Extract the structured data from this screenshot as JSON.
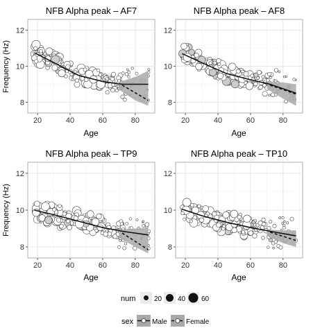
{
  "figure": {
    "ylabel": "Frequency (Hz)",
    "xlabel": "Age"
  },
  "legend": {
    "size_title": "num",
    "size_values": [
      20,
      40,
      60
    ],
    "sex_title": "sex",
    "sex_entries": [
      "Male",
      "Female"
    ]
  },
  "colors": {
    "point_fill": "#ffffff",
    "point_overlap_fill": "#cccccc",
    "point_stroke": "#444444",
    "ribbon": "#a9a9a9",
    "grid": "#e6e6e6",
    "line": "#111111"
  },
  "chart_data": [
    {
      "type": "scatter",
      "title": "NFB Alpha peak – AF7",
      "xlim": [
        14,
        92
      ],
      "ylim": [
        7.4,
        12.6
      ],
      "xticks": [
        20,
        40,
        60,
        80
      ],
      "yticks": [
        8,
        10,
        12
      ],
      "xlabel": "Age",
      "ylabel": "Frequency (Hz)",
      "grid": true,
      "trend": {
        "male": [
          [
            18,
            10.75
          ],
          [
            30,
            10.2
          ],
          [
            45,
            9.5
          ],
          [
            60,
            9.15
          ],
          [
            72,
            9.0
          ],
          [
            88,
            9.0
          ]
        ],
        "female": [
          [
            18,
            10.75
          ],
          [
            30,
            10.2
          ],
          [
            45,
            9.5
          ],
          [
            60,
            9.15
          ],
          [
            72,
            8.95
          ],
          [
            88,
            8.1
          ]
        ],
        "ribbon_upper": [
          [
            70,
            9.12
          ],
          [
            80,
            9.4
          ],
          [
            88,
            9.75
          ]
        ],
        "ribbon_lower": [
          [
            70,
            8.7
          ],
          [
            80,
            8.1
          ],
          [
            88,
            7.8
          ]
        ]
      }
    },
    {
      "type": "scatter",
      "title": "NFB Alpha peak – AF8",
      "xlim": [
        14,
        92
      ],
      "ylim": [
        7.4,
        12.6
      ],
      "xticks": [
        20,
        40,
        60,
        80
      ],
      "yticks": [
        8,
        10,
        12
      ],
      "xlabel": "Age",
      "ylabel": "Frequency (Hz)",
      "grid": true,
      "trend": {
        "male": [
          [
            18,
            10.7
          ],
          [
            30,
            10.2
          ],
          [
            45,
            9.6
          ],
          [
            60,
            9.25
          ],
          [
            72,
            9.0
          ],
          [
            88,
            8.5
          ]
        ],
        "female": [
          [
            18,
            10.7
          ],
          [
            30,
            10.2
          ],
          [
            45,
            9.6
          ],
          [
            60,
            9.25
          ],
          [
            72,
            8.95
          ],
          [
            88,
            8.45
          ]
        ],
        "ribbon_upper": [
          [
            70,
            9.15
          ],
          [
            80,
            9.1
          ],
          [
            88,
            9.0
          ]
        ],
        "ribbon_lower": [
          [
            70,
            8.75
          ],
          [
            80,
            8.2
          ],
          [
            88,
            7.8
          ]
        ]
      }
    },
    {
      "type": "scatter",
      "title": "NFB Alpha peak – TP9",
      "xlim": [
        14,
        92
      ],
      "ylim": [
        7.4,
        12.6
      ],
      "xticks": [
        20,
        40,
        60,
        80
      ],
      "yticks": [
        8,
        10,
        12
      ],
      "xlabel": "Age",
      "ylabel": "Frequency (Hz)",
      "grid": true,
      "trend": {
        "male": [
          [
            18,
            10.0
          ],
          [
            30,
            9.75
          ],
          [
            45,
            9.4
          ],
          [
            60,
            9.05
          ],
          [
            72,
            8.85
          ],
          [
            88,
            8.65
          ]
        ],
        "female": [
          [
            18,
            10.0
          ],
          [
            30,
            9.75
          ],
          [
            45,
            9.4
          ],
          [
            60,
            9.05
          ],
          [
            72,
            8.75
          ],
          [
            88,
            7.85
          ]
        ],
        "ribbon_upper": [
          [
            70,
            8.95
          ],
          [
            80,
            9.0
          ],
          [
            88,
            9.05
          ]
        ],
        "ribbon_lower": [
          [
            70,
            8.5
          ],
          [
            80,
            8.0
          ],
          [
            88,
            7.65
          ]
        ]
      }
    },
    {
      "type": "scatter",
      "title": "NFB Alpha peak – TP10",
      "xlim": [
        14,
        92
      ],
      "ylim": [
        7.4,
        12.6
      ],
      "xticks": [
        20,
        40,
        60,
        80
      ],
      "yticks": [
        8,
        10,
        12
      ],
      "xlabel": "Age",
      "ylabel": "Frequency (Hz)",
      "grid": true,
      "trend": {
        "male": [
          [
            18,
            10.05
          ],
          [
            30,
            9.7
          ],
          [
            45,
            9.35
          ],
          [
            60,
            9.05
          ],
          [
            72,
            8.85
          ],
          [
            88,
            8.6
          ]
        ],
        "female": [
          [
            18,
            10.05
          ],
          [
            30,
            9.7
          ],
          [
            45,
            9.35
          ],
          [
            60,
            9.05
          ],
          [
            72,
            8.8
          ],
          [
            88,
            8.35
          ]
        ],
        "ribbon_upper": [
          [
            70,
            8.95
          ],
          [
            80,
            8.9
          ],
          [
            88,
            8.9
          ]
        ],
        "ribbon_lower": [
          [
            70,
            8.6
          ],
          [
            80,
            8.2
          ],
          [
            88,
            8.0
          ]
        ]
      }
    }
  ]
}
